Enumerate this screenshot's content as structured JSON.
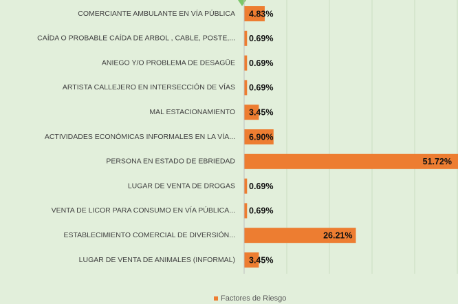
{
  "chart_data": {
    "type": "bar",
    "orientation": "horizontal",
    "categories": [
      "COMERCIANTE AMBULANTE EN VÍA PÚBLICA",
      "CAÍDA O PROBABLE CAÍDA DE ARBOL , CABLE, POSTE,...",
      "ANIEGO Y/O PROBLEMA DE DESAGÜE",
      "ARTISTA CALLEJERO EN INTERSECCIÓN DE VÍAS",
      "MAL ESTACIONAMIENTO",
      "ACTIVIDADES ECONÓMICAS INFORMALES EN LA VÍA...",
      "PERSONA EN ESTADO DE EBRIEDAD",
      "LUGAR DE VENTA DE DROGAS",
      "VENTA DE LICOR PARA CONSUMO EN VÍA PÚBLICA...",
      "ESTABLECIMIENTO COMERCIAL DE DIVERSIÓN...",
      "LUGAR DE VENTA DE ANIMALES (INFORMAL)"
    ],
    "series": [
      {
        "name": "Factores de Riesgo",
        "color": "#ed7d31",
        "values": [
          4.83,
          0.69,
          0.69,
          0.69,
          3.45,
          6.9,
          51.72,
          0.69,
          0.69,
          26.21,
          3.45
        ],
        "value_labels": [
          "4.83%",
          "0.69%",
          "0.69%",
          "0.69%",
          "3.45%",
          "6.90%",
          "51.72%",
          "0.69%",
          "0.69%",
          "26.21%",
          "3.45%"
        ]
      }
    ],
    "xlim": [
      0,
      50
    ],
    "xticks": [
      0,
      10,
      20,
      30,
      40,
      50
    ],
    "grid": true,
    "legend": "bottom"
  }
}
